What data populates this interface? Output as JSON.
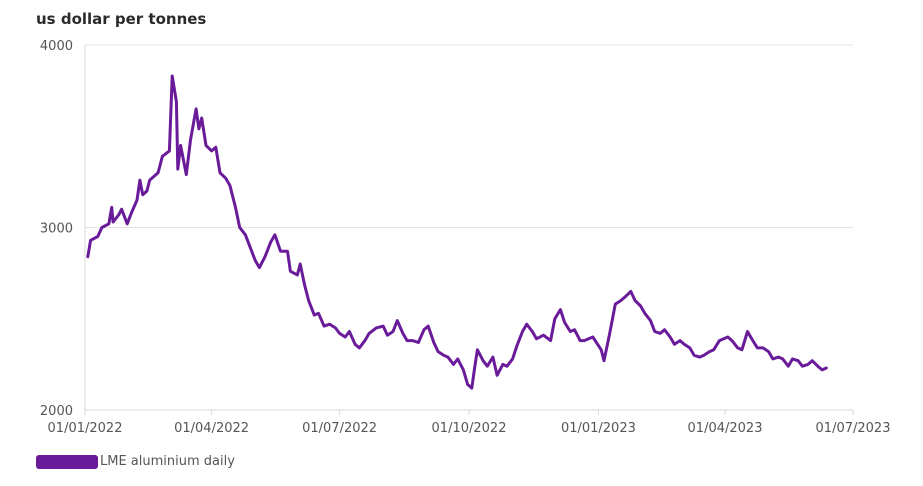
{
  "chart_data": {
    "type": "line",
    "title": "",
    "ylabel": "us dollar per tonnes",
    "xlabel": "",
    "ylim": [
      2000,
      4000
    ],
    "yticks": [
      2000,
      3000,
      4000
    ],
    "xlim": [
      "2022-01-01",
      "2023-07-01"
    ],
    "xticks": [
      {
        "date": "2022-01-01",
        "label": "01/01/2022"
      },
      {
        "date": "2022-04-01",
        "label": "01/04/2022"
      },
      {
        "date": "2022-07-01",
        "label": "01/07/2022"
      },
      {
        "date": "2022-10-01",
        "label": "01/10/2022"
      },
      {
        "date": "2023-01-01",
        "label": "01/01/2023"
      },
      {
        "date": "2023-04-01",
        "label": "01/04/2023"
      },
      {
        "date": "2023-07-01",
        "label": "01/07/2023"
      }
    ],
    "grid": true,
    "legend_position": "bottom-left",
    "series": [
      {
        "name": "LME aluminium daily",
        "color": "#6a1b9a",
        "points": [
          [
            "2022-01-03",
            2840
          ],
          [
            "2022-01-05",
            2930
          ],
          [
            "2022-01-10",
            2950
          ],
          [
            "2022-01-13",
            3000
          ],
          [
            "2022-01-18",
            3020
          ],
          [
            "2022-01-20",
            3110
          ],
          [
            "2022-01-21",
            3030
          ],
          [
            "2022-01-25",
            3070
          ],
          [
            "2022-01-27",
            3100
          ],
          [
            "2022-01-31",
            3020
          ],
          [
            "2022-02-03",
            3080
          ],
          [
            "2022-02-07",
            3150
          ],
          [
            "2022-02-09",
            3260
          ],
          [
            "2022-02-11",
            3180
          ],
          [
            "2022-02-14",
            3200
          ],
          [
            "2022-02-16",
            3260
          ],
          [
            "2022-02-22",
            3300
          ],
          [
            "2022-02-25",
            3390
          ],
          [
            "2022-03-02",
            3420
          ],
          [
            "2022-03-04",
            3830
          ],
          [
            "2022-03-07",
            3690
          ],
          [
            "2022-03-08",
            3320
          ],
          [
            "2022-03-10",
            3450
          ],
          [
            "2022-03-14",
            3290
          ],
          [
            "2022-03-17",
            3480
          ],
          [
            "2022-03-21",
            3650
          ],
          [
            "2022-03-23",
            3540
          ],
          [
            "2022-03-25",
            3600
          ],
          [
            "2022-03-28",
            3450
          ],
          [
            "2022-04-01",
            3420
          ],
          [
            "2022-04-04",
            3440
          ],
          [
            "2022-04-07",
            3300
          ],
          [
            "2022-04-11",
            3270
          ],
          [
            "2022-04-14",
            3230
          ],
          [
            "2022-04-18",
            3110
          ],
          [
            "2022-04-21",
            3000
          ],
          [
            "2022-04-25",
            2960
          ],
          [
            "2022-04-28",
            2900
          ],
          [
            "2022-05-02",
            2820
          ],
          [
            "2022-05-05",
            2780
          ],
          [
            "2022-05-09",
            2840
          ],
          [
            "2022-05-13",
            2920
          ],
          [
            "2022-05-16",
            2960
          ],
          [
            "2022-05-20",
            2870
          ],
          [
            "2022-05-25",
            2870
          ],
          [
            "2022-05-27",
            2760
          ],
          [
            "2022-06-01",
            2740
          ],
          [
            "2022-06-03",
            2800
          ],
          [
            "2022-06-06",
            2690
          ],
          [
            "2022-06-09",
            2600
          ],
          [
            "2022-06-13",
            2520
          ],
          [
            "2022-06-16",
            2530
          ],
          [
            "2022-06-20",
            2460
          ],
          [
            "2022-06-24",
            2470
          ],
          [
            "2022-06-28",
            2450
          ],
          [
            "2022-07-01",
            2420
          ],
          [
            "2022-07-05",
            2400
          ],
          [
            "2022-07-08",
            2430
          ],
          [
            "2022-07-12",
            2360
          ],
          [
            "2022-07-15",
            2340
          ],
          [
            "2022-07-19",
            2380
          ],
          [
            "2022-07-22",
            2420
          ],
          [
            "2022-07-27",
            2450
          ],
          [
            "2022-08-01",
            2460
          ],
          [
            "2022-08-04",
            2410
          ],
          [
            "2022-08-08",
            2430
          ],
          [
            "2022-08-11",
            2490
          ],
          [
            "2022-08-15",
            2420
          ],
          [
            "2022-08-18",
            2380
          ],
          [
            "2022-08-22",
            2380
          ],
          [
            "2022-08-26",
            2370
          ],
          [
            "2022-08-30",
            2440
          ],
          [
            "2022-09-02",
            2460
          ],
          [
            "2022-09-06",
            2370
          ],
          [
            "2022-09-09",
            2320
          ],
          [
            "2022-09-13",
            2300
          ],
          [
            "2022-09-16",
            2290
          ],
          [
            "2022-09-20",
            2250
          ],
          [
            "2022-09-23",
            2280
          ],
          [
            "2022-09-27",
            2220
          ],
          [
            "2022-09-30",
            2140
          ],
          [
            "2022-10-03",
            2120
          ],
          [
            "2022-10-05",
            2230
          ],
          [
            "2022-10-07",
            2330
          ],
          [
            "2022-10-11",
            2270
          ],
          [
            "2022-10-14",
            2240
          ],
          [
            "2022-10-18",
            2290
          ],
          [
            "2022-10-21",
            2190
          ],
          [
            "2022-10-25",
            2250
          ],
          [
            "2022-10-28",
            2240
          ],
          [
            "2022-11-01",
            2280
          ],
          [
            "2022-11-04",
            2350
          ],
          [
            "2022-11-08",
            2430
          ],
          [
            "2022-11-11",
            2470
          ],
          [
            "2022-11-15",
            2430
          ],
          [
            "2022-11-18",
            2390
          ],
          [
            "2022-11-23",
            2410
          ],
          [
            "2022-11-28",
            2380
          ],
          [
            "2022-12-01",
            2500
          ],
          [
            "2022-12-05",
            2550
          ],
          [
            "2022-12-08",
            2480
          ],
          [
            "2022-12-12",
            2430
          ],
          [
            "2022-12-15",
            2440
          ],
          [
            "2022-12-19",
            2380
          ],
          [
            "2022-12-22",
            2380
          ],
          [
            "2022-12-28",
            2400
          ],
          [
            "2023-01-03",
            2330
          ],
          [
            "2023-01-05",
            2270
          ],
          [
            "2023-01-09",
            2420
          ],
          [
            "2023-01-13",
            2580
          ],
          [
            "2023-01-17",
            2600
          ],
          [
            "2023-01-20",
            2620
          ],
          [
            "2023-01-24",
            2650
          ],
          [
            "2023-01-27",
            2600
          ],
          [
            "2023-01-31",
            2570
          ],
          [
            "2023-02-03",
            2530
          ],
          [
            "2023-02-07",
            2490
          ],
          [
            "2023-02-10",
            2430
          ],
          [
            "2023-02-14",
            2420
          ],
          [
            "2023-02-17",
            2440
          ],
          [
            "2023-02-21",
            2400
          ],
          [
            "2023-02-24",
            2360
          ],
          [
            "2023-02-28",
            2380
          ],
          [
            "2023-03-03",
            2360
          ],
          [
            "2023-03-07",
            2340
          ],
          [
            "2023-03-10",
            2300
          ],
          [
            "2023-03-14",
            2290
          ],
          [
            "2023-03-17",
            2300
          ],
          [
            "2023-03-21",
            2320
          ],
          [
            "2023-03-24",
            2330
          ],
          [
            "2023-03-28",
            2380
          ],
          [
            "2023-04-03",
            2400
          ],
          [
            "2023-04-06",
            2380
          ],
          [
            "2023-04-10",
            2340
          ],
          [
            "2023-04-13",
            2330
          ],
          [
            "2023-04-17",
            2430
          ],
          [
            "2023-04-20",
            2390
          ],
          [
            "2023-04-24",
            2340
          ],
          [
            "2023-04-28",
            2340
          ],
          [
            "2023-05-02",
            2320
          ],
          [
            "2023-05-05",
            2280
          ],
          [
            "2023-05-09",
            2290
          ],
          [
            "2023-05-12",
            2280
          ],
          [
            "2023-05-16",
            2240
          ],
          [
            "2023-05-19",
            2280
          ],
          [
            "2023-05-23",
            2270
          ],
          [
            "2023-05-26",
            2240
          ],
          [
            "2023-05-30",
            2250
          ],
          [
            "2023-06-02",
            2270
          ],
          [
            "2023-06-06",
            2240
          ],
          [
            "2023-06-09",
            2220
          ],
          [
            "2023-06-12",
            2230
          ]
        ]
      }
    ]
  }
}
